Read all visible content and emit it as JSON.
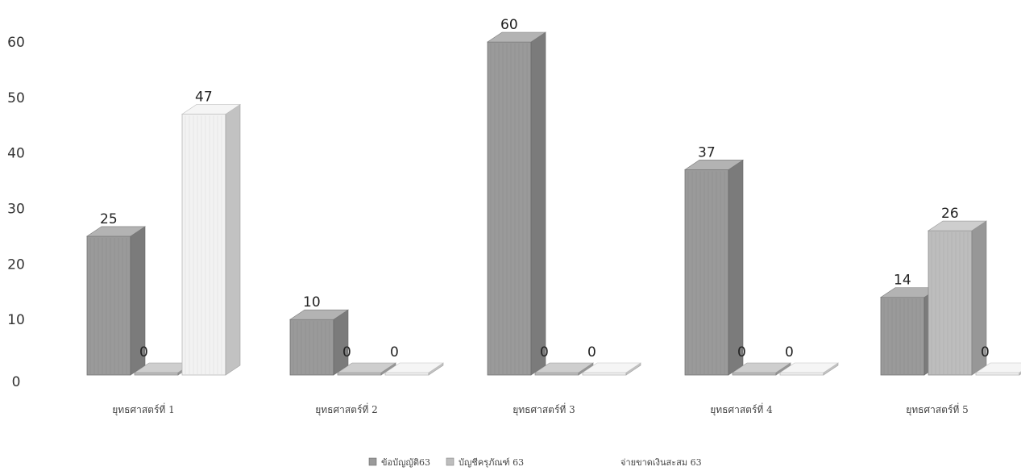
{
  "chart_data": {
    "type": "bar",
    "style": "3d-clustered-column",
    "categories": [
      "ยุทธศาสตร์ที่ 1",
      "ยุทธศาสตร์ที่ 2",
      "ยุทธศาสตร์ที่ 3",
      "ยุทธศาสตร์ที่ 4",
      "ยุทธศาสตร์ที่ 5"
    ],
    "series": [
      {
        "name": "ข้อบัญญัติ63",
        "values": [
          25,
          10,
          60,
          37,
          14
        ],
        "color": "#9a9a9a"
      },
      {
        "name": "บัญชีครุภัณฑ์ 63",
        "values": [
          0,
          0,
          0,
          0,
          26
        ],
        "color": "#bdbdbd"
      },
      {
        "name": "จ่ายขาดเงินสะสม 63",
        "values": [
          47,
          0,
          0,
          0,
          0
        ],
        "color": "#f2f2f2"
      }
    ],
    "y_ticks": [
      0,
      10,
      20,
      30,
      40,
      50,
      60
    ],
    "ylim": [
      0,
      60
    ],
    "grid": false,
    "legend_position": "bottom"
  }
}
